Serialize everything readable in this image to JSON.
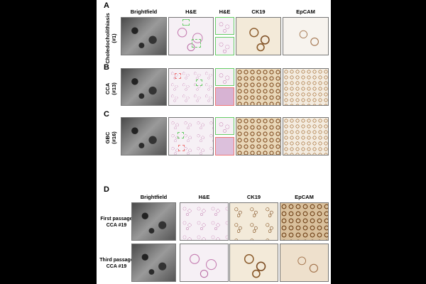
{
  "panels": {
    "A": {
      "label": "A",
      "row_label_1": "Choledocholithiasis",
      "row_label_2": "(#1)"
    },
    "B": {
      "label": "B",
      "row_label_1": "CCA",
      "row_label_2": "(#13)"
    },
    "C": {
      "label": "C",
      "row_label_1": "GBC",
      "row_label_2": "(#16)"
    },
    "D": {
      "label": "D",
      "rows": [
        {
          "line1": "First passage",
          "line2": "CCA #19"
        },
        {
          "line1": "Third passage",
          "line2": "CCA #19"
        }
      ]
    }
  },
  "headers_abc": [
    "Brightfield",
    "H&E",
    "H&E",
    "CK19",
    "EpCAM"
  ],
  "headers_d": [
    "Brightfield",
    "H&E",
    "CK19",
    "EpCAM"
  ],
  "colors": {
    "green_box": "#66cc66",
    "red_box": "#ee7777"
  }
}
